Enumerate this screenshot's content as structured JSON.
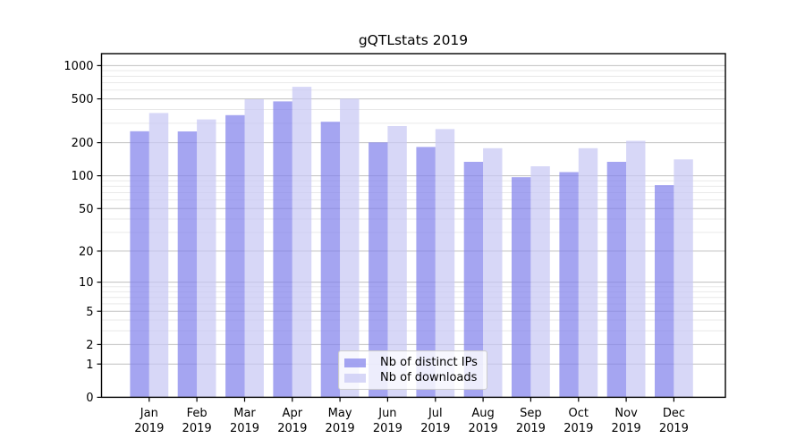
{
  "title": "gQTLstats 2019",
  "chart_data": {
    "type": "bar",
    "title": "gQTLstats 2019",
    "categories": [
      "Jan 2019",
      "Feb 2019",
      "Mar 2019",
      "Apr 2019",
      "May 2019",
      "Jun 2019",
      "Jul 2019",
      "Aug 2019",
      "Sep 2019",
      "Oct 2019",
      "Nov 2019",
      "Dec 2019"
    ],
    "series": [
      {
        "name": "Nb of distinct IPs",
        "color": "#8282eb",
        "opacity": 0.72,
        "values": [
          254,
          253,
          356,
          474,
          310,
          201,
          183,
          134,
          97,
          108,
          134,
          82
        ]
      },
      {
        "name": "Nb of downloads",
        "color": "#c8c8f4",
        "opacity": 0.72,
        "values": [
          372,
          325,
          496,
          643,
          502,
          283,
          266,
          178,
          122,
          178,
          208,
          141
        ]
      }
    ],
    "xlabel": "",
    "ylabel": "",
    "y_scale": "log1p",
    "y_ticks": [
      0,
      1,
      2,
      5,
      10,
      20,
      50,
      100,
      200,
      500,
      1000
    ],
    "ylim": [
      0,
      1280
    ],
    "grid": true,
    "legend_position": "lower-center"
  },
  "colors": {
    "bar_dark_on_white": "#a6a6f0",
    "bar_light_on_white": "#d8d8f7",
    "major_grid": "#c0c0c0",
    "minor_grid": "#e9e9e9",
    "frame": "#000000",
    "legend_border": "#cccccc",
    "legend_bg": "#ffffff",
    "text": "#000000"
  }
}
